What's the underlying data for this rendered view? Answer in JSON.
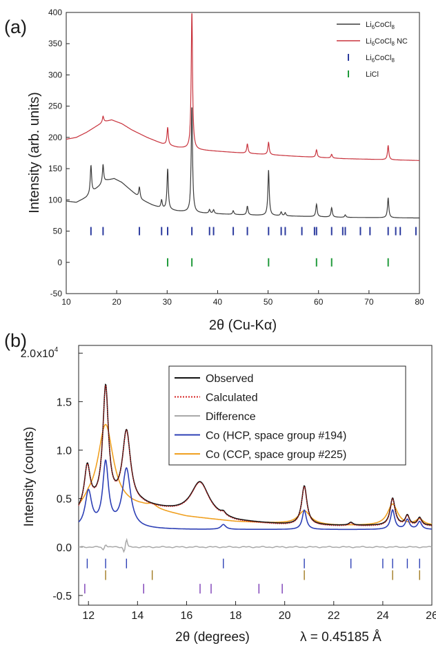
{
  "chart_data": [
    {
      "panel_label": "(a)",
      "type": "line",
      "xlabel": "2θ (Cu-Kα)",
      "ylabel": "Intensity (arb. units)",
      "xlim": [
        10,
        80
      ],
      "ylim": [
        -50,
        400
      ],
      "xticks": [
        10,
        20,
        30,
        40,
        50,
        60,
        70,
        80
      ],
      "yticks": [
        -50,
        0,
        50,
        100,
        150,
        200,
        250,
        300,
        350,
        400
      ],
      "legend_position": "top-right",
      "series": [
        {
          "name": "Li6CoCl8",
          "color": "#3a3a3a",
          "baseline": [
            [
              10,
              98
            ],
            [
              12,
              96
            ],
            [
              14,
              104
            ],
            [
              16,
              118
            ],
            [
              18,
              131
            ],
            [
              19.5,
              134
            ],
            [
              21,
              128
            ],
            [
              23,
              114
            ],
            [
              25,
              100
            ],
            [
              27,
              92
            ],
            [
              29,
              86
            ],
            [
              32,
              82
            ],
            [
              36,
              79
            ],
            [
              45,
              76
            ],
            [
              55,
              74
            ],
            [
              65,
              72
            ],
            [
              80,
              71
            ]
          ],
          "peaks": [
            [
              14.9,
              45
            ],
            [
              17.3,
              30
            ],
            [
              24.5,
              17
            ],
            [
              28.9,
              13
            ],
            [
              30.1,
              65
            ],
            [
              34.9,
              170
            ],
            [
              38.4,
              6
            ],
            [
              39.2,
              6
            ],
            [
              43.1,
              6
            ],
            [
              45.9,
              14
            ],
            [
              50.1,
              73
            ],
            [
              52.6,
              6
            ],
            [
              53.4,
              5
            ],
            [
              59.6,
              20
            ],
            [
              62.6,
              15
            ],
            [
              65.3,
              4
            ],
            [
              73.8,
              32
            ]
          ]
        },
        {
          "name": "Li6CoCl8 NC",
          "color": "#c8323c",
          "baseline": [
            [
              10,
              197
            ],
            [
              12,
              200
            ],
            [
              14,
              208
            ],
            [
              16,
              218
            ],
            [
              17.5,
              225
            ],
            [
              19,
              228
            ],
            [
              21,
              222
            ],
            [
              23,
              212
            ],
            [
              26,
              200
            ],
            [
              29,
              190
            ],
            [
              32,
              184
            ],
            [
              36,
              180
            ],
            [
              45,
              175
            ],
            [
              55,
              170
            ],
            [
              65,
              166
            ],
            [
              80,
              163
            ]
          ],
          "peaks": [
            [
              17.3,
              10
            ],
            [
              30.1,
              28
            ],
            [
              34.9,
              220
            ],
            [
              45.9,
              15
            ],
            [
              50.1,
              20
            ],
            [
              59.6,
              12
            ],
            [
              62.6,
              6
            ],
            [
              73.8,
              23
            ]
          ]
        }
      ],
      "reflection_markers": [
        {
          "name": "Li6CoCl8",
          "color": "#2b3a9e",
          "y": 50,
          "positions": [
            14.9,
            17.3,
            24.5,
            28.9,
            30.1,
            34.9,
            38.4,
            39.2,
            43.1,
            45.9,
            50.1,
            52.6,
            53.4,
            56.7,
            59.2,
            59.6,
            62.6,
            64.8,
            65.3,
            68.3,
            70.2,
            73.8,
            75.3,
            76.2,
            79.3
          ]
        },
        {
          "name": "LiCl",
          "color": "#1f9a3a",
          "y": 0,
          "positions": [
            30.1,
            34.9,
            50.1,
            59.6,
            62.6,
            73.8
          ]
        }
      ],
      "legend": [
        {
          "kind": "line",
          "color": "#3a3a3a",
          "base": "Li",
          "sub1": "6",
          "mid": "CoCl",
          "sub2": "8",
          "suffix": ""
        },
        {
          "kind": "line",
          "color": "#c8323c",
          "base": "Li",
          "sub1": "6",
          "mid": "CoCl",
          "sub2": "8",
          "suffix": " NC"
        },
        {
          "kind": "tick",
          "color": "#2b3a9e",
          "base": "Li",
          "sub1": "6",
          "mid": "CoCl",
          "sub2": "8",
          "suffix": ""
        },
        {
          "kind": "tick",
          "color": "#1f9a3a",
          "base": "LiCl",
          "sub1": "",
          "mid": "",
          "sub2": "",
          "suffix": ""
        }
      ]
    },
    {
      "panel_label": "(b)",
      "type": "line",
      "xlabel": "2θ (degrees)",
      "xlabel_extra": "λ = 0.45185 Å",
      "ylabel": "Intensity (counts)",
      "xlim": [
        11.6,
        26
      ],
      "ylim": [
        -0.6,
        2.08
      ],
      "y_scale_note": "x10^4",
      "xticks": [
        12,
        14,
        16,
        18,
        20,
        22,
        24,
        26
      ],
      "yticks": [
        {
          "value": 2.0,
          "label": "2.0"
        },
        {
          "value": 1.5,
          "label": "1.5"
        },
        {
          "value": 1.0,
          "label": "1.0"
        },
        {
          "value": 0.5,
          "label": "0.5"
        },
        {
          "value": 0.0,
          "label": "0.0"
        },
        {
          "value": -0.5,
          "label": "-0.5"
        }
      ],
      "top_tick_exponent_label": {
        "prefix": "x10",
        "exponent": "4"
      },
      "legend_position": "top-right",
      "series": [
        {
          "name": "Observed",
          "color": "#111111",
          "style": "solid"
        },
        {
          "name": "Calculated",
          "color": "#d62020",
          "style": "dotted"
        },
        {
          "name": "Difference",
          "color": "#a8a8a8",
          "style": "solid"
        },
        {
          "name": "Co (HCP, space group #194)",
          "color": "#2c3fb5",
          "style": "solid",
          "baseline": [
            [
              11.6,
              0.19
            ],
            [
              16,
              0.18
            ],
            [
              26,
              0.18
            ]
          ],
          "peaks": [
            [
              12.0,
              0.37,
              0.16
            ],
            [
              12.7,
              0.66,
              0.14
            ],
            [
              13.55,
              0.61,
              0.2
            ],
            [
              17.5,
              0.05,
              0.12
            ],
            [
              20.8,
              0.2,
              0.1
            ],
            [
              24.4,
              0.2,
              0.1
            ],
            [
              25.0,
              0.1,
              0.1
            ],
            [
              25.5,
              0.08,
              0.1
            ]
          ]
        },
        {
          "name": "Co (CCP, space group #225)",
          "color": "#f0a020",
          "style": "solid",
          "baseline": [
            [
              11.6,
              0.35
            ],
            [
              12.0,
              0.42
            ],
            [
              14.2,
              0.4
            ],
            [
              16,
              0.31
            ],
            [
              18,
              0.26
            ],
            [
              20,
              0.24
            ],
            [
              22,
              0.22
            ],
            [
              24,
              0.22
            ],
            [
              26,
              0.22
            ]
          ],
          "peaks": [
            [
              12.7,
              0.85,
              0.38
            ],
            [
              14.6,
              0.04,
              0.2
            ],
            [
              20.8,
              0.14,
              0.3
            ],
            [
              24.4,
              0.22,
              0.25
            ],
            [
              25.5,
              0.06,
              0.2
            ]
          ]
        }
      ],
      "observed_profile": {
        "baseline": [
          [
            11.6,
            0.35
          ],
          [
            12.0,
            0.42
          ],
          [
            14.2,
            0.42
          ],
          [
            16,
            0.34
          ],
          [
            18,
            0.26
          ],
          [
            20,
            0.23
          ],
          [
            22,
            0.22
          ],
          [
            24,
            0.22
          ],
          [
            26,
            0.22
          ]
        ],
        "peaks": [
          [
            11.95,
            0.4,
            0.14
          ],
          [
            12.7,
            1.2,
            0.14
          ],
          [
            13.55,
            0.75,
            0.2
          ],
          [
            16.55,
            0.35,
            0.45
          ],
          [
            17.5,
            0.03,
            0.1
          ],
          [
            20.8,
            0.4,
            0.13
          ],
          [
            22.7,
            0.03,
            0.1
          ],
          [
            24.4,
            0.28,
            0.12
          ],
          [
            25.0,
            0.1,
            0.1
          ],
          [
            25.5,
            0.08,
            0.1
          ]
        ]
      },
      "reflection_markers": [
        {
          "name": "Co (HCP, space group #194)",
          "color": "#2c3fb5",
          "y": -0.17,
          "positions": [
            11.95,
            12.7,
            13.55,
            17.5,
            20.8,
            22.7,
            24.0,
            24.4,
            25.0,
            25.5
          ]
        },
        {
          "name": "Co (CCP, space group #225)",
          "color": "#a07a20",
          "y": -0.29,
          "positions": [
            12.7,
            14.6,
            20.8,
            24.4,
            25.5
          ]
        },
        {
          "name": "",
          "color": "#7a3ab5",
          "y": -0.43,
          "positions": [
            11.85,
            14.25,
            16.55,
            17.0,
            18.95,
            19.9
          ]
        }
      ]
    }
  ]
}
